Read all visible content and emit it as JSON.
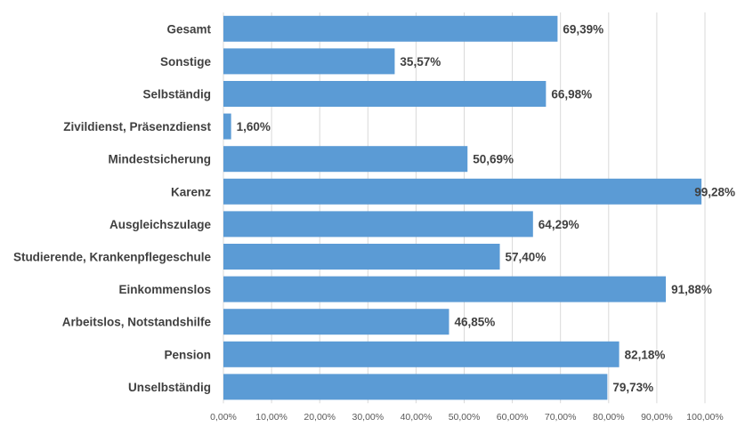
{
  "chart_data": {
    "type": "bar",
    "orientation": "horizontal",
    "categories": [
      "Gesamt",
      "Sonstige",
      "Selbständig",
      "Zivildienst, Präsenzdienst",
      "Mindestsicherung",
      "Karenz",
      "Ausgleichszulage",
      "Studierende, Krankenpflegeschule",
      "Einkommenslos",
      "Arbeitslos, Notstandshilfe",
      "Pension",
      "Unselbständig"
    ],
    "values": [
      69.39,
      35.57,
      66.98,
      1.6,
      50.69,
      99.28,
      64.29,
      57.4,
      91.88,
      46.85,
      82.18,
      79.73
    ],
    "value_labels": [
      "69,39%",
      "35,57%",
      "66,98%",
      "1,60%",
      "50,69%",
      "99,28%",
      "64,29%",
      "57,40%",
      "91,88%",
      "46,85%",
      "82,18%",
      "79,73%"
    ],
    "x_ticks": [
      "0,00%",
      "10,00%",
      "20,00%",
      "30,00%",
      "40,00%",
      "50,00%",
      "60,00%",
      "70,00%",
      "80,00%",
      "90,00%",
      "100,00%"
    ],
    "xlim": [
      0,
      100
    ],
    "grid": "vertical",
    "bar_color": "#5B9BD5",
    "grid_color": "#D9D9D9",
    "label_color": "#404040",
    "tick_color": "#595959",
    "title": "",
    "xlabel": "",
    "ylabel": ""
  }
}
